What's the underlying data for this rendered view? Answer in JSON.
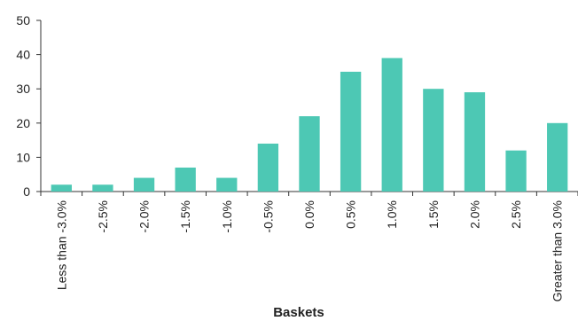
{
  "chart_data": {
    "type": "bar",
    "title": "",
    "xlabel": "Baskets",
    "ylabel": "",
    "ylim": [
      0,
      50
    ],
    "yticks": [
      0,
      10,
      20,
      30,
      40,
      50
    ],
    "grid": false,
    "legend": "none",
    "bar_color": "#4dc8b4",
    "categories": [
      "Less than -3.0%",
      "-2.5%",
      "-2.0%",
      "-1.5%",
      "-1.0%",
      "-0.5%",
      "0.0%",
      "0.5%",
      "1.0%",
      "1.5%",
      "2.0%",
      "2.5%",
      "Greater than 3.0%"
    ],
    "values": [
      2,
      2,
      4,
      7,
      4,
      14,
      22,
      35,
      39,
      30,
      29,
      12,
      20
    ]
  }
}
